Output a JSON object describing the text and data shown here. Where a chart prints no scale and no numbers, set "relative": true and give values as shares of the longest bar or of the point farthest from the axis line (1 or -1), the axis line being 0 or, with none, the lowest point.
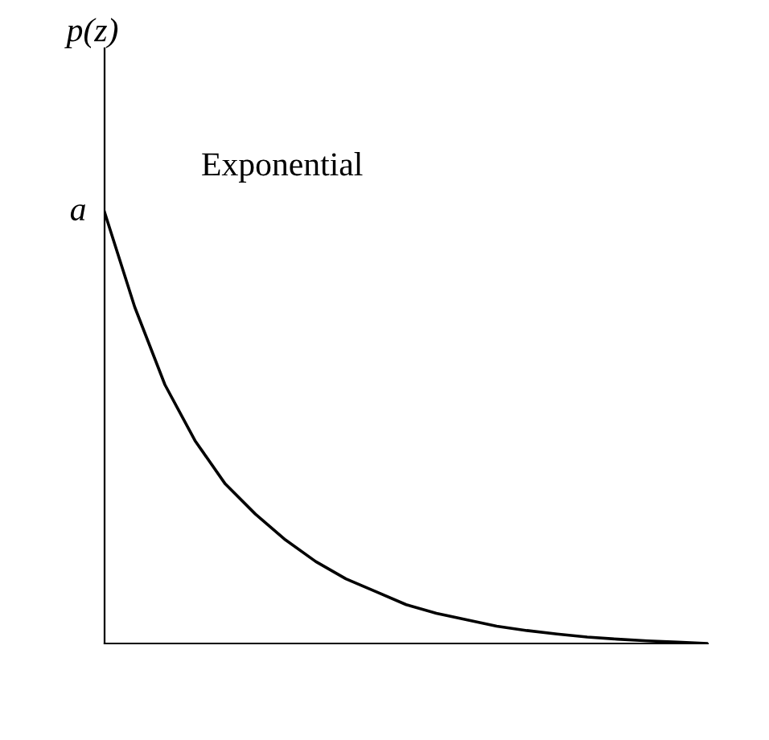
{
  "chart_data": {
    "type": "line",
    "relative": true,
    "ylabel": "p(z)",
    "categories": [
      null,
      null,
      null,
      null,
      null,
      null,
      null,
      null,
      null,
      null,
      null,
      null,
      null,
      null,
      null,
      null,
      null,
      null,
      null,
      null,
      null
    ],
    "series": [
      {
        "color": "#000000",
        "values": [
          1.0,
          0.78,
          0.6,
          0.47,
          0.37,
          0.3,
          0.24,
          0.19,
          0.15,
          0.12,
          0.09,
          0.07,
          0.055,
          0.04,
          0.03,
          0.022,
          0.015,
          0.01,
          0.006,
          0.003,
          0.0
        ]
      }
    ],
    "annotations": [
      "a",
      "Exponential"
    ],
    "grid": false,
    "legend": false,
    "marker": "none",
    "line_style": "solid"
  }
}
